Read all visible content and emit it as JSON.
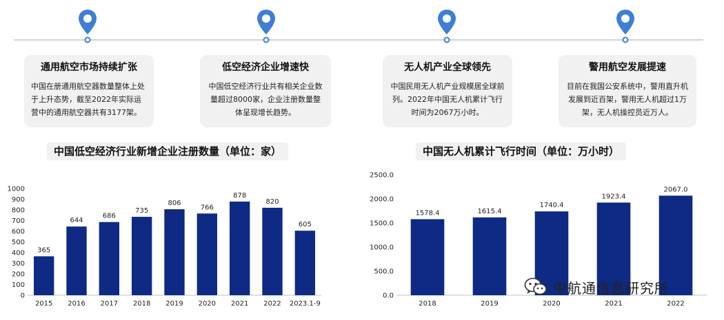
{
  "colors": {
    "accent": "#3e7fd6",
    "bar": "#0e2a84",
    "card_bg": "#f1f1f1"
  },
  "timeline": [
    {
      "title": "通用航空市场持续扩张",
      "desc": "中国在册通用航空器数量整体上处于上升态势，截至2022年实际运营中的通用航空器共有3177架。"
    },
    {
      "title": "低空经济企业增速快",
      "desc": "中国低空经济行业共有相关企业数量超过8000家，企业注册数量整体呈现增长趋势。"
    },
    {
      "title": "无人机产业全球领先",
      "desc": "中国民用无人机产业规模居全球前列。2022年中国无人机累计飞行时间为2067万小时。"
    },
    {
      "title": "警用航空发展提速",
      "desc": "目前在我国公安系统中，警用直升机发展到近百架，警用无人机超过1万架，无人机操控员近万人。"
    }
  ],
  "chart_data": [
    {
      "type": "bar",
      "title": "中国低空经济行业新增企业注册数量（单位：家）",
      "categories": [
        "2015",
        "2016",
        "2017",
        "2018",
        "2019",
        "2020",
        "2021",
        "2022",
        "2023.1-9"
      ],
      "values": [
        365,
        644,
        686,
        735,
        806,
        766,
        878,
        820,
        605
      ],
      "value_labels": [
        "365",
        "644",
        "686",
        "735",
        "806",
        "766",
        "878",
        "820",
        "605"
      ],
      "yticks": [
        "0",
        "100",
        "200",
        "300",
        "400",
        "500",
        "600",
        "700",
        "800",
        "900",
        "1000"
      ],
      "ylim": [
        0,
        1000
      ],
      "grid": false,
      "legend": "none"
    },
    {
      "type": "bar",
      "title": "中国无人机累计飞行时间（单位：万小时）",
      "categories": [
        "2018",
        "2019",
        "2020",
        "2021",
        "2022"
      ],
      "values": [
        1578.4,
        1615.4,
        1740.4,
        1923.4,
        2067.0
      ],
      "value_labels": [
        "1578.4",
        "1615.4",
        "1740.4",
        "1923.4",
        "2067.0"
      ],
      "yticks": [
        "0.0",
        "500.0",
        "1000.0",
        "1500.0",
        "2000.0",
        "2500.0"
      ],
      "ylim": [
        0,
        2500
      ],
      "grid": false,
      "legend": "none"
    }
  ],
  "watermark": {
    "text": "中航通信息研究所",
    "icon": "wechat-icon"
  }
}
